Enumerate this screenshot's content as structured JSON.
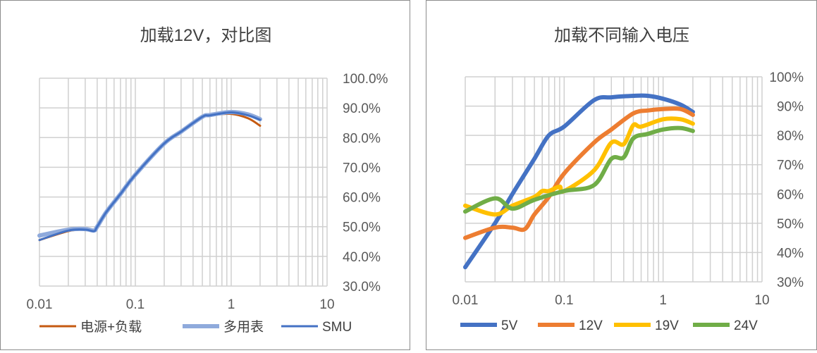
{
  "chart_data": [
    {
      "type": "line",
      "title": "加载12V，对比图",
      "xscale": "log",
      "xlim": [
        0.01,
        10
      ],
      "ylim": [
        30,
        100
      ],
      "xticks": [
        "0.01",
        "0.1",
        "1",
        "10"
      ],
      "yticks": [
        "30.0%",
        "40.0%",
        "50.0%",
        "60.0%",
        "70.0%",
        "80.0%",
        "90.0%",
        "100.0%"
      ],
      "grid": true,
      "legend": "bottom",
      "series": [
        {
          "name": "电源+负载",
          "color": "#C55A11",
          "x": [
            0.01,
            0.02,
            0.03,
            0.037,
            0.04,
            0.05,
            0.07,
            0.1,
            0.2,
            0.3,
            0.5,
            0.6,
            1,
            1.5,
            2
          ],
          "y": [
            45.5,
            48.5,
            49,
            48.5,
            50,
            55,
            61,
            67.5,
            78,
            82,
            87,
            87.5,
            88,
            86.5,
            84
          ]
        },
        {
          "name": "多用表",
          "color": "#8FAADC",
          "x": [
            0.01,
            0.02,
            0.03,
            0.037,
            0.04,
            0.05,
            0.07,
            0.1,
            0.2,
            0.3,
            0.5,
            0.6,
            1,
            1.5,
            2
          ],
          "y": [
            47,
            49,
            49.2,
            48.7,
            50,
            55,
            61,
            67.5,
            78,
            82,
            87,
            87.6,
            88.6,
            87.8,
            86.2
          ]
        },
        {
          "name": "SMU",
          "color": "#4472C4",
          "x": [
            0.01,
            0.02,
            0.03,
            0.037,
            0.04,
            0.05,
            0.07,
            0.1,
            0.2,
            0.3,
            0.5,
            0.6,
            1,
            1.5,
            2
          ],
          "y": [
            45.5,
            48.7,
            49,
            48.5,
            50,
            55,
            61,
            67.5,
            78,
            82,
            87,
            87.5,
            88.5,
            87.5,
            86
          ]
        }
      ]
    },
    {
      "type": "line",
      "title": "加载不同输入电压",
      "xscale": "log",
      "xlim": [
        0.01,
        10
      ],
      "ylim": [
        30,
        100
      ],
      "xticks": [
        "0.01",
        "0.1",
        "1",
        "10"
      ],
      "yticks": [
        "30%",
        "40%",
        "50%",
        "60%",
        "70%",
        "80%",
        "90%",
        "100%"
      ],
      "grid": true,
      "legend": "bottom",
      "series": [
        {
          "name": "5V",
          "color": "#4472C4",
          "x": [
            0.01,
            0.02,
            0.03,
            0.05,
            0.07,
            0.1,
            0.2,
            0.3,
            0.5,
            0.7,
            1,
            1.5,
            2
          ],
          "y": [
            35,
            50,
            60,
            72,
            80,
            83,
            92,
            93,
            93.5,
            93.5,
            92.5,
            90.5,
            88
          ]
        },
        {
          "name": "12V",
          "color": "#ED7D31",
          "x": [
            0.01,
            0.02,
            0.03,
            0.04,
            0.05,
            0.07,
            0.1,
            0.2,
            0.3,
            0.5,
            0.7,
            1,
            1.5,
            2
          ],
          "y": [
            45,
            48.5,
            48.5,
            48,
            53,
            59,
            67,
            77.5,
            82,
            87.5,
            88.5,
            89,
            89,
            87
          ]
        },
        {
          "name": "19V",
          "color": "#FFC000",
          "x": [
            0.01,
            0.02,
            0.03,
            0.05,
            0.06,
            0.07,
            0.09,
            0.1,
            0.2,
            0.3,
            0.4,
            0.5,
            0.6,
            1,
            1.5,
            2
          ],
          "y": [
            56,
            53,
            56,
            59,
            61,
            61,
            62.5,
            61,
            68,
            77.5,
            77,
            83.5,
            83,
            85.5,
            85.5,
            84
          ]
        },
        {
          "name": "24V",
          "color": "#70AD47",
          "x": [
            0.01,
            0.02,
            0.03,
            0.05,
            0.1,
            0.2,
            0.3,
            0.4,
            0.5,
            0.7,
            1,
            1.5,
            2
          ],
          "y": [
            54,
            58.5,
            55,
            58,
            61,
            63,
            72,
            72.5,
            79,
            80.5,
            82,
            82.5,
            81.5
          ]
        }
      ]
    }
  ]
}
